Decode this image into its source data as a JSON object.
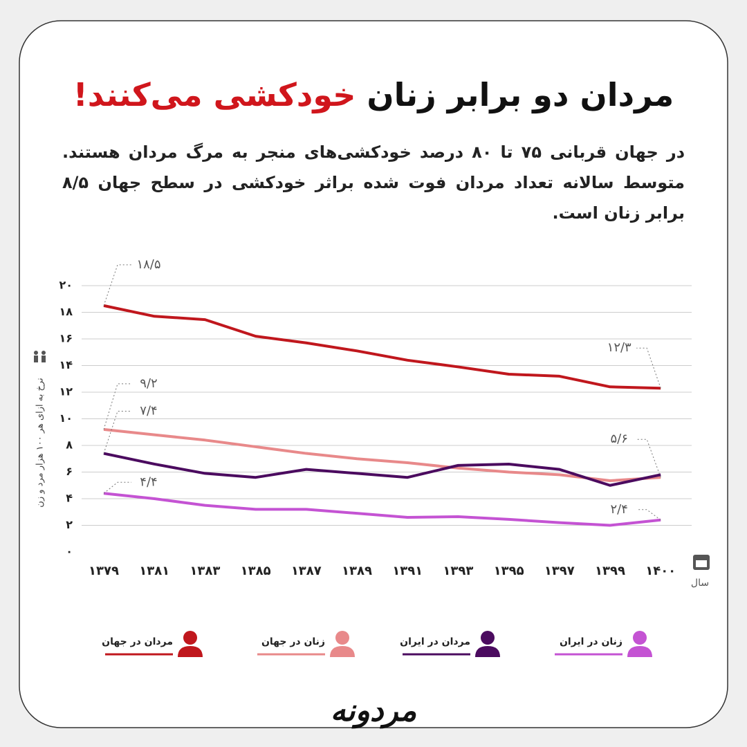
{
  "chart_data": {
    "type": "line",
    "title": "مردان دو برابر زنان",
    "title_highlight": "خودکشی می‌کنند!",
    "subtitle": "در جهان قربانی ۷۵ تا ۸۰ درصد خودکشی‌های منجر به مرگ مردان هستند. متوسط سالانه تعداد مردان فوت شده براثر خودکشی در سطح جهان ۸/۵ برابر زنان است.",
    "y_label": "نرخ به ازای هر ۱۰۰ هزار مرد و زن",
    "x_label": "سال",
    "categories": [
      "۱۳۷۹",
      "۱۳۸۱",
      "۱۳۸۳",
      "۱۳۸۵",
      "۱۳۸۷",
      "۱۳۸۹",
      "۱۳۹۱",
      "۱۳۹۳",
      "۱۳۹۵",
      "۱۳۹۷",
      "۱۳۹۹",
      "۱۴۰۰"
    ],
    "ylim": [
      0,
      20
    ],
    "yticks": [
      {
        "value": 0,
        "label": "۰"
      },
      {
        "value": 2,
        "label": "۲"
      },
      {
        "value": 4,
        "label": "۴"
      },
      {
        "value": 6,
        "label": "۶"
      },
      {
        "value": 8,
        "label": "۸"
      },
      {
        "value": 10,
        "label": "۱۰"
      },
      {
        "value": 12,
        "label": "۱۲"
      },
      {
        "value": 14,
        "label": "۱۴"
      },
      {
        "value": 16,
        "label": "۱۶"
      },
      {
        "value": 18,
        "label": "۱۸"
      },
      {
        "value": 20,
        "label": "۲۰"
      }
    ],
    "grid": true,
    "series": [
      {
        "name": "مردان در جهان",
        "color": "#c0171d",
        "values": [
          18.5,
          17.7,
          17.45,
          16.2,
          15.7,
          15.1,
          14.4,
          13.9,
          13.35,
          13.2,
          12.4,
          12.3
        ],
        "value_labels": [
          "۱۸/۵",
          null,
          null,
          null,
          null,
          null,
          null,
          null,
          null,
          null,
          null,
          "۱۲/۳"
        ]
      },
      {
        "name": "زنان در جهان",
        "color": "#e8898a",
        "values": [
          9.2,
          8.8,
          8.4,
          7.9,
          7.4,
          7.0,
          6.7,
          6.3,
          6.0,
          5.8,
          5.35,
          5.6
        ],
        "value_labels": [
          "۹/۲",
          null,
          null,
          null,
          null,
          null,
          null,
          null,
          null,
          null,
          null,
          "۵/۶"
        ]
      },
      {
        "name": "مردان در ایران",
        "color": "#4b0b5f",
        "values": [
          7.4,
          6.6,
          5.9,
          5.6,
          6.2,
          5.9,
          5.6,
          6.5,
          6.6,
          6.2,
          5.0,
          5.8
        ],
        "value_labels": [
          "۷/۴",
          null,
          null,
          null,
          null,
          null,
          null,
          null,
          null,
          null,
          null,
          null
        ]
      },
      {
        "name": "زنان در ایران",
        "color": "#c453d3",
        "values": [
          4.4,
          4.0,
          3.5,
          3.2,
          3.2,
          2.9,
          2.6,
          2.65,
          2.45,
          2.2,
          2.0,
          2.4
        ],
        "value_labels": [
          "۴/۴",
          null,
          null,
          null,
          null,
          null,
          null,
          null,
          null,
          null,
          null,
          "۲/۴"
        ]
      }
    ],
    "brand": "مردونه"
  }
}
